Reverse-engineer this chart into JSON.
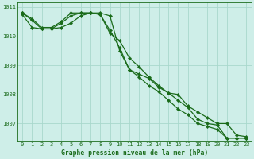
{
  "title": "Graphe pression niveau de la mer (hPa)",
  "x": [
    0,
    1,
    2,
    3,
    4,
    5,
    6,
    7,
    8,
    9,
    10,
    11,
    12,
    13,
    14,
    15,
    16,
    17,
    18,
    19,
    20,
    21,
    22,
    23
  ],
  "line1": [
    1010.8,
    1010.6,
    1010.3,
    1010.3,
    1010.5,
    1010.8,
    1010.8,
    1010.8,
    1010.75,
    1010.2,
    1009.6,
    1008.85,
    1008.7,
    1008.55,
    1008.25,
    1008.05,
    1007.8,
    1007.55,
    1007.15,
    1007.0,
    1006.95,
    1006.5,
    1006.5,
    1006.5
  ],
  "line2": [
    1010.8,
    1010.55,
    1010.25,
    1010.25,
    1010.45,
    1010.7,
    1010.8,
    1010.8,
    1010.75,
    1010.1,
    1009.85,
    1009.25,
    1008.95,
    1008.6,
    1008.3,
    1008.05,
    1008.0,
    1007.6,
    1007.4,
    1007.2,
    1007.0,
    1007.0,
    1006.6,
    1006.55
  ],
  "line3": [
    1010.75,
    1010.3,
    1010.25,
    1010.25,
    1010.3,
    1010.45,
    1010.7,
    1010.8,
    1010.8,
    1010.7,
    1009.5,
    1008.85,
    1008.6,
    1008.3,
    1008.1,
    1007.8,
    1007.5,
    1007.3,
    1007.0,
    1006.9,
    1006.8,
    1006.5,
    1006.5,
    1006.5
  ],
  "line_color": "#1a6b1a",
  "bg_color": "#ceeee8",
  "grid_color": "#a8d8cc",
  "ylim_min": 1006.4,
  "ylim_max": 1011.15,
  "yticks": [
    1007,
    1008,
    1009,
    1010,
    1011
  ],
  "marker": "D",
  "markersize": 2.2,
  "linewidth": 0.9,
  "xlabel_fontsize": 5.8,
  "tick_fontsize": 5.0
}
